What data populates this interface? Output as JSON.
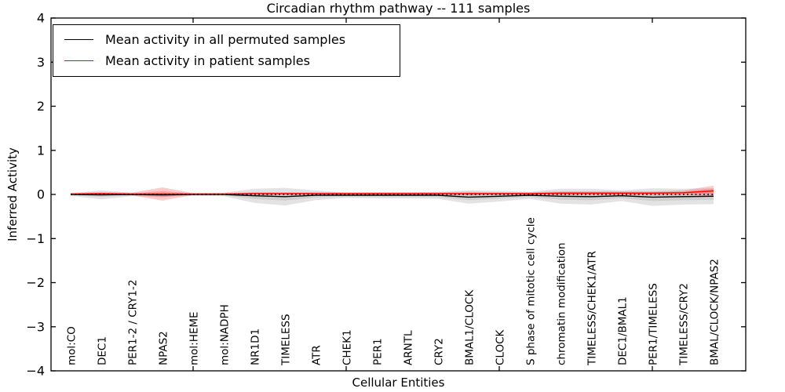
{
  "figure": {
    "title": "Circadian rhythm pathway -- 111 samples",
    "xlabel": "Cellular Entities",
    "ylabel": "Inferred Activity"
  },
  "legend": {
    "items": [
      {
        "label": "Mean activity in all permuted samples",
        "color": "#000000"
      },
      {
        "label": "Mean activity in patient samples",
        "color": "#ff0000"
      }
    ]
  },
  "chart_data": {
    "type": "line",
    "title": "Circadian rhythm pathway -- 111 samples",
    "xlabel": "Cellular Entities",
    "ylabel": "Inferred Activity",
    "ylim": [
      -4,
      4
    ],
    "yticks": [
      4,
      3,
      2,
      1,
      0,
      -1,
      -2,
      -3,
      -4
    ],
    "numeric_xtick_indices": [
      4,
      9,
      14,
      19
    ],
    "grid": false,
    "legend_position": "upper left",
    "zero_line": {
      "style": "dotted",
      "color": "#000000",
      "y": 0
    },
    "categories": [
      "mol:CO",
      "DEC1",
      "PER1-2 / CRY1-2",
      "NPAS2",
      "mol:HEME",
      "mol:NADPH",
      "NR1D1",
      "TIMELESS",
      "ATR",
      "CHEK1",
      "PER1",
      "ARNTL",
      "CRY2",
      "BMAL1/CLOCK",
      "CLOCK",
      "S phase of mitotic cell cycle",
      "chromatin modification",
      "TIMELESS/CHEK1/ATR",
      "DEC1/BMAL1",
      "PER1/TIMELESS",
      "TIMELESS/CRY2",
      "BMAL/CLOCK/NPAS2"
    ],
    "series": [
      {
        "name": "Mean activity in all permuted samples",
        "color": "#000000",
        "band_color": "#999999",
        "mean": [
          0,
          -0.01,
          0,
          -0.01,
          0,
          0,
          -0.03,
          -0.05,
          -0.02,
          -0.02,
          -0.02,
          -0.02,
          -0.02,
          -0.06,
          -0.04,
          -0.02,
          -0.04,
          -0.05,
          -0.03,
          -0.06,
          -0.05,
          -0.04
        ],
        "std": [
          0.03,
          0.1,
          0.04,
          0.05,
          0.03,
          0.04,
          0.16,
          0.2,
          0.11,
          0.06,
          0.07,
          0.07,
          0.08,
          0.15,
          0.12,
          0.08,
          0.17,
          0.18,
          0.12,
          0.2,
          0.18,
          0.18
        ]
      },
      {
        "name": "Mean activity in patient samples",
        "color": "#ff0000",
        "band_color": "#ff4444",
        "mean": [
          0.01,
          0.02,
          0.01,
          0.01,
          0.01,
          0.01,
          0.02,
          0.02,
          0.02,
          0.02,
          0.02,
          0.02,
          0.02,
          0.02,
          0.02,
          0.02,
          0.03,
          0.03,
          0.03,
          0.03,
          0.04,
          0.08
        ],
        "std": [
          0.02,
          0.03,
          0.03,
          0.15,
          0.02,
          0.02,
          0.03,
          0.03,
          0.03,
          0.03,
          0.03,
          0.03,
          0.03,
          0.04,
          0.03,
          0.03,
          0.04,
          0.04,
          0.04,
          0.04,
          0.05,
          0.12
        ]
      }
    ]
  }
}
